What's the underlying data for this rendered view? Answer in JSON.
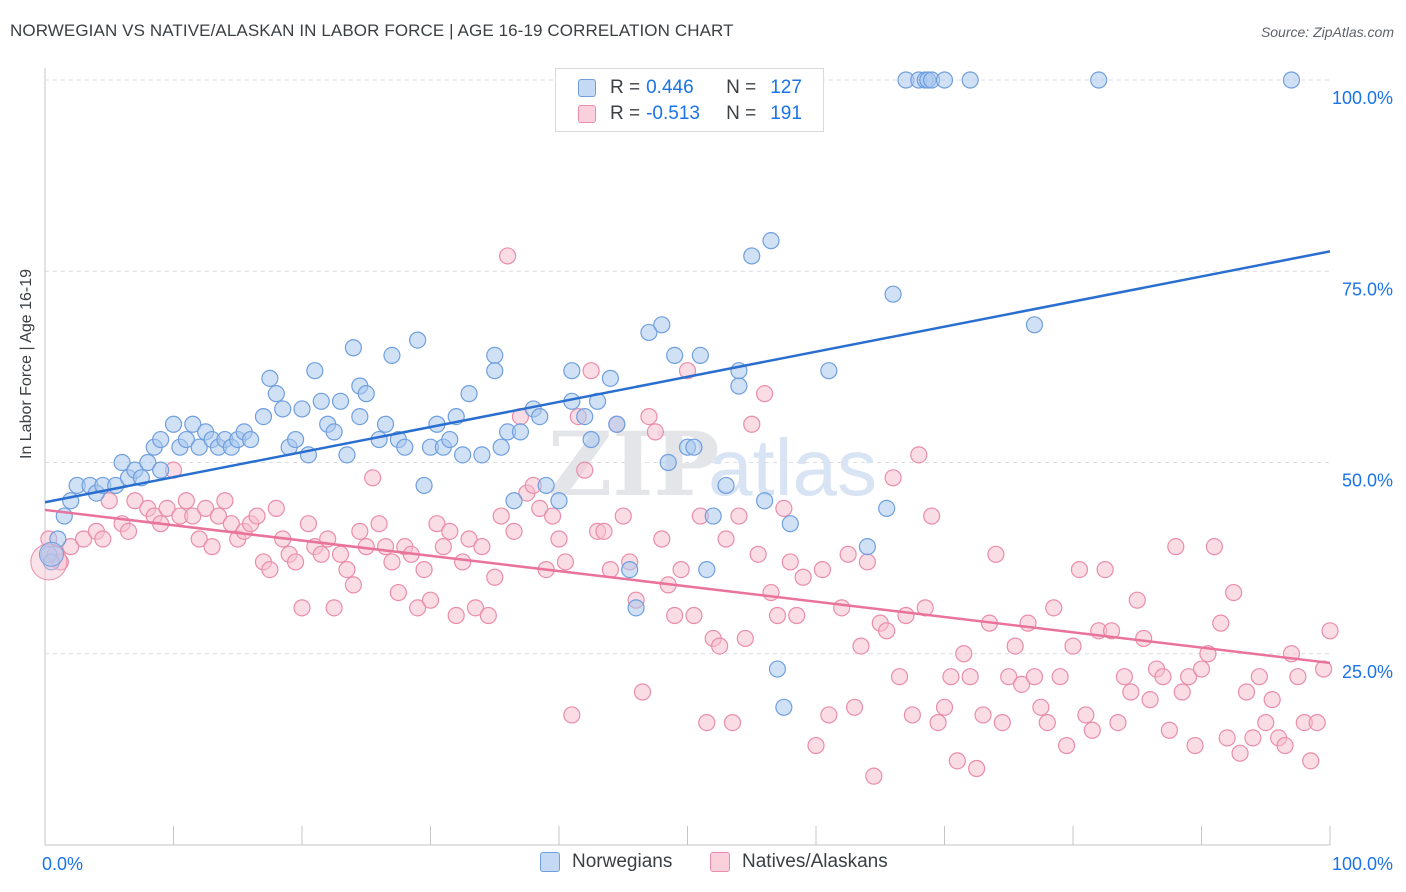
{
  "title": "NORWEGIAN VS NATIVE/ALASKAN IN LABOR FORCE | AGE 16-19 CORRELATION CHART",
  "source": "Source: ZipAtlas.com",
  "watermark": "ZIPatlas",
  "colors": {
    "blue_fill": "#aac8ef",
    "blue_stroke": "#6f9fde",
    "blue_line": "#2a6fd0",
    "pink_fill": "#f6bfcf",
    "pink_stroke": "#ea8daa",
    "pink_line": "#e9739b",
    "accent_text": "#1a73e8",
    "grid": "#dadce0"
  },
  "legend": {
    "rows": [
      {
        "r_label": "R =",
        "r_value": "0.446",
        "n_label": "N =",
        "n_value": "127",
        "series": "Norwegians"
      },
      {
        "r_label": "R =",
        "r_value": "-0.513",
        "n_label": "N =",
        "n_value": "191",
        "series": "Natives/Alaskans"
      }
    ]
  },
  "chart_data": {
    "type": "scatter",
    "title": "NORWEGIAN VS NATIVE/ALASKAN IN LABOR FORCE | AGE 16-19 CORRELATION CHART",
    "xlabel": "",
    "ylabel": "In Labor Force | Age 16-19",
    "xlim": [
      0,
      100
    ],
    "ylim": [
      0,
      105
    ],
    "x_tick_labels": [
      "0.0%",
      "100.0%"
    ],
    "y_tick_labels": [
      "25.0%",
      "50.0%",
      "75.0%",
      "100.0%"
    ],
    "y_ticks": [
      25,
      50,
      75,
      100
    ],
    "grid": true,
    "legend_position": "top-center",
    "series": [
      {
        "name": "Norwegians",
        "color": "#aac8ef",
        "trend": {
          "x": [
            0,
            100
          ],
          "y": [
            44.8,
            77.6
          ]
        },
        "points": [
          [
            0.3,
            38
          ],
          [
            0.5,
            37
          ],
          [
            1,
            40
          ],
          [
            1.5,
            43
          ],
          [
            2,
            45
          ],
          [
            2.5,
            47
          ],
          [
            3.5,
            47
          ],
          [
            4,
            46
          ],
          [
            4.5,
            47
          ],
          [
            5.5,
            47
          ],
          [
            6,
            50
          ],
          [
            6.5,
            48
          ],
          [
            7,
            49
          ],
          [
            7.5,
            48
          ],
          [
            8,
            50
          ],
          [
            8.5,
            52
          ],
          [
            9,
            49
          ],
          [
            9,
            53
          ],
          [
            10,
            55
          ],
          [
            10.5,
            52
          ],
          [
            11,
            53
          ],
          [
            11.5,
            55
          ],
          [
            12,
            52
          ],
          [
            12.5,
            54
          ],
          [
            13,
            53
          ],
          [
            13.5,
            52
          ],
          [
            14,
            53
          ],
          [
            14.5,
            52
          ],
          [
            15,
            53
          ],
          [
            15.5,
            54
          ],
          [
            16,
            53
          ],
          [
            17,
            56
          ],
          [
            17.5,
            61
          ],
          [
            18,
            59
          ],
          [
            18.5,
            57
          ],
          [
            19,
            52
          ],
          [
            19.5,
            53
          ],
          [
            20,
            57
          ],
          [
            20.5,
            51
          ],
          [
            21,
            62
          ],
          [
            21.5,
            58
          ],
          [
            22,
            55
          ],
          [
            22.5,
            54
          ],
          [
            23,
            58
          ],
          [
            23.5,
            51
          ],
          [
            24,
            65
          ],
          [
            24.5,
            60
          ],
          [
            24.5,
            56
          ],
          [
            25,
            59
          ],
          [
            26,
            53
          ],
          [
            26.5,
            55
          ],
          [
            27,
            64
          ],
          [
            27.5,
            53
          ],
          [
            28,
            52
          ],
          [
            29,
            66
          ],
          [
            29.5,
            47
          ],
          [
            30,
            52
          ],
          [
            30.5,
            55
          ],
          [
            31,
            52
          ],
          [
            31.5,
            53
          ],
          [
            32,
            56
          ],
          [
            32.5,
            51
          ],
          [
            33,
            59
          ],
          [
            34,
            51
          ],
          [
            35,
            64
          ],
          [
            35,
            62
          ],
          [
            35.5,
            52
          ],
          [
            36,
            54
          ],
          [
            36.5,
            45
          ],
          [
            37,
            54
          ],
          [
            38,
            57
          ],
          [
            38.5,
            56
          ],
          [
            39,
            47
          ],
          [
            40,
            45
          ],
          [
            41,
            62
          ],
          [
            41,
            58
          ],
          [
            42,
            56
          ],
          [
            42.5,
            53
          ],
          [
            43,
            58
          ],
          [
            44,
            61
          ],
          [
            44.5,
            55
          ],
          [
            45.5,
            36
          ],
          [
            46,
            31
          ],
          [
            47,
            67
          ],
          [
            48,
            68
          ],
          [
            48.5,
            50
          ],
          [
            49,
            64
          ],
          [
            50,
            52
          ],
          [
            50.5,
            52
          ],
          [
            51,
            64
          ],
          [
            51.5,
            36
          ],
          [
            52,
            43
          ],
          [
            53,
            47
          ],
          [
            54,
            60
          ],
          [
            54,
            62
          ],
          [
            55,
            77
          ],
          [
            56,
            45
          ],
          [
            56.5,
            79
          ],
          [
            57,
            23
          ],
          [
            57.5,
            18
          ],
          [
            58,
            42
          ],
          [
            61,
            62
          ],
          [
            64,
            39
          ],
          [
            65.5,
            44
          ],
          [
            66,
            72
          ],
          [
            67,
            100
          ],
          [
            68,
            100
          ],
          [
            68.5,
            100
          ],
          [
            68.7,
            100
          ],
          [
            69,
            100
          ],
          [
            70,
            100
          ],
          [
            72,
            100
          ],
          [
            77,
            68
          ],
          [
            82,
            100
          ],
          [
            97,
            100
          ]
        ],
        "trend_note": ""
      },
      {
        "name": "Natives/Alaskans",
        "color": "#f6bfcf",
        "trend": {
          "x": [
            0,
            100
          ],
          "y": [
            43.8,
            23.8
          ]
        },
        "points": [
          [
            0.3,
            40
          ],
          [
            0.8,
            38
          ],
          [
            1.2,
            37
          ],
          [
            2,
            39
          ],
          [
            3,
            40
          ],
          [
            4,
            41
          ],
          [
            4.5,
            40
          ],
          [
            5,
            45
          ],
          [
            6,
            42
          ],
          [
            6.5,
            41
          ],
          [
            7,
            45
          ],
          [
            8,
            44
          ],
          [
            8.5,
            43
          ],
          [
            9,
            42
          ],
          [
            9.5,
            44
          ],
          [
            10,
            49
          ],
          [
            10.5,
            43
          ],
          [
            11,
            45
          ],
          [
            11.5,
            43
          ],
          [
            12,
            40
          ],
          [
            12.5,
            44
          ],
          [
            13,
            39
          ],
          [
            13.5,
            43
          ],
          [
            14,
            45
          ],
          [
            14.5,
            42
          ],
          [
            15,
            40
          ],
          [
            15.5,
            41
          ],
          [
            16,
            42
          ],
          [
            16.5,
            43
          ],
          [
            17,
            37
          ],
          [
            17.5,
            36
          ],
          [
            18,
            44
          ],
          [
            18.5,
            40
          ],
          [
            19,
            38
          ],
          [
            19.5,
            37
          ],
          [
            20,
            31
          ],
          [
            20.5,
            42
          ],
          [
            21,
            39
          ],
          [
            21.5,
            38
          ],
          [
            22,
            40
          ],
          [
            22.5,
            31
          ],
          [
            23,
            38
          ],
          [
            23.5,
            36
          ],
          [
            24,
            34
          ],
          [
            24.5,
            41
          ],
          [
            25,
            39
          ],
          [
            25.5,
            48
          ],
          [
            26,
            42
          ],
          [
            26.5,
            39
          ],
          [
            27,
            37
          ],
          [
            27.5,
            33
          ],
          [
            28,
            39
          ],
          [
            28.5,
            38
          ],
          [
            29,
            31
          ],
          [
            29.5,
            36
          ],
          [
            30,
            32
          ],
          [
            30.5,
            42
          ],
          [
            31,
            39
          ],
          [
            31.5,
            41
          ],
          [
            32,
            30
          ],
          [
            32.5,
            37
          ],
          [
            33,
            40
          ],
          [
            33.5,
            31
          ],
          [
            34,
            39
          ],
          [
            34.5,
            30
          ],
          [
            35,
            35
          ],
          [
            35.5,
            43
          ],
          [
            36,
            77
          ],
          [
            36.5,
            41
          ],
          [
            37,
            56
          ],
          [
            37.5,
            46
          ],
          [
            38,
            47
          ],
          [
            38.5,
            44
          ],
          [
            39,
            36
          ],
          [
            39.5,
            43
          ],
          [
            40,
            40
          ],
          [
            40.5,
            37
          ],
          [
            41,
            17
          ],
          [
            41.5,
            56
          ],
          [
            42,
            49
          ],
          [
            42.5,
            62
          ],
          [
            43,
            41
          ],
          [
            43.5,
            41
          ],
          [
            44,
            36
          ],
          [
            44.5,
            55
          ],
          [
            45,
            43
          ],
          [
            45.5,
            37
          ],
          [
            46,
            32
          ],
          [
            46.5,
            20
          ],
          [
            47,
            56
          ],
          [
            47.5,
            54
          ],
          [
            48,
            40
          ],
          [
            48.5,
            34
          ],
          [
            49,
            30
          ],
          [
            49.5,
            36
          ],
          [
            50,
            62
          ],
          [
            50.5,
            30
          ],
          [
            51,
            43
          ],
          [
            51.5,
            16
          ],
          [
            52,
            27
          ],
          [
            52.5,
            26
          ],
          [
            53,
            40
          ],
          [
            53.5,
            16
          ],
          [
            54,
            43
          ],
          [
            54.5,
            27
          ],
          [
            55,
            55
          ],
          [
            55.5,
            38
          ],
          [
            56,
            59
          ],
          [
            56.5,
            33
          ],
          [
            57,
            30
          ],
          [
            57.5,
            44
          ],
          [
            58,
            37
          ],
          [
            58.5,
            30
          ],
          [
            59,
            35
          ],
          [
            60,
            13
          ],
          [
            60.5,
            36
          ],
          [
            61,
            17
          ],
          [
            62,
            31
          ],
          [
            62.5,
            38
          ],
          [
            63,
            18
          ],
          [
            63.5,
            26
          ],
          [
            64,
            37
          ],
          [
            64.5,
            9
          ],
          [
            65,
            29
          ],
          [
            65.5,
            28
          ],
          [
            66,
            48
          ],
          [
            66.5,
            22
          ],
          [
            67,
            30
          ],
          [
            67.5,
            17
          ],
          [
            68,
            51
          ],
          [
            68.5,
            31
          ],
          [
            69,
            43
          ],
          [
            69.5,
            16
          ],
          [
            70,
            18
          ],
          [
            70.5,
            22
          ],
          [
            71,
            11
          ],
          [
            71.5,
            25
          ],
          [
            72,
            22
          ],
          [
            72.5,
            10
          ],
          [
            73,
            17
          ],
          [
            73.5,
            29
          ],
          [
            74,
            38
          ],
          [
            74.5,
            16
          ],
          [
            75,
            22
          ],
          [
            75.5,
            26
          ],
          [
            76,
            21
          ],
          [
            76.5,
            29
          ],
          [
            77,
            22
          ],
          [
            77.5,
            18
          ],
          [
            78,
            16
          ],
          [
            78.5,
            31
          ],
          [
            79,
            22
          ],
          [
            79.5,
            13
          ],
          [
            80,
            26
          ],
          [
            80.5,
            36
          ],
          [
            81,
            17
          ],
          [
            81.5,
            15
          ],
          [
            82,
            28
          ],
          [
            82.5,
            36
          ],
          [
            83,
            28
          ],
          [
            83.5,
            16
          ],
          [
            84,
            22
          ],
          [
            84.5,
            20
          ],
          [
            85,
            32
          ],
          [
            85.5,
            27
          ],
          [
            86,
            19
          ],
          [
            86.5,
            23
          ],
          [
            87,
            22
          ],
          [
            87.5,
            15
          ],
          [
            88,
            39
          ],
          [
            88.5,
            20
          ],
          [
            89,
            22
          ],
          [
            89.5,
            13
          ],
          [
            90,
            23
          ],
          [
            90.5,
            25
          ],
          [
            91,
            39
          ],
          [
            91.5,
            29
          ],
          [
            92,
            14
          ],
          [
            92.5,
            33
          ],
          [
            93,
            12
          ],
          [
            93.5,
            20
          ],
          [
            94,
            14
          ],
          [
            94.5,
            22
          ],
          [
            95,
            16
          ],
          [
            95.5,
            19
          ],
          [
            96,
            14
          ],
          [
            96.5,
            13
          ],
          [
            97,
            25
          ],
          [
            97.5,
            22
          ],
          [
            98,
            16
          ],
          [
            98.5,
            11
          ],
          [
            99,
            16
          ],
          [
            99.5,
            23
          ],
          [
            100,
            28
          ]
        ],
        "trend_note": ""
      }
    ]
  },
  "axis": {
    "y_label": "In Labor Force | Age 16-19",
    "x_min_label": "0.0%",
    "x_max_label": "100.0%"
  },
  "bottom_legend": [
    {
      "label": "Norwegians"
    },
    {
      "label": "Natives/Alaskans"
    }
  ]
}
